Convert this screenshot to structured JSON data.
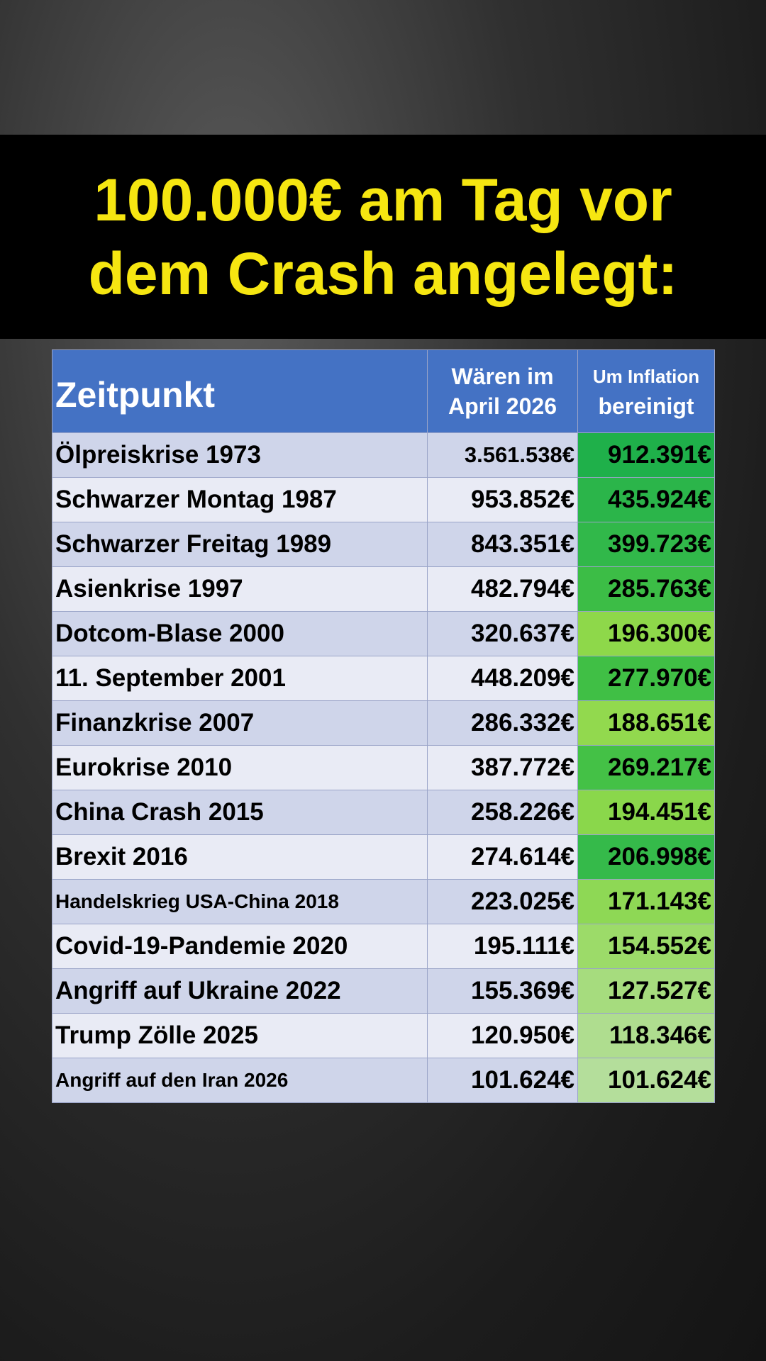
{
  "header": {
    "title": [
      "100.000€ am Tag vor",
      "dem Crash angelegt:"
    ]
  },
  "table": {
    "columns": [
      [
        "Zeitpunkt"
      ],
      [
        "Wären im",
        "April 2026"
      ],
      [
        "Um Inflation",
        "bereinigt"
      ]
    ],
    "rows": [
      [
        "Ölpreiskrise 1973",
        "3.561.538€",
        "912.391€"
      ],
      [
        "Schwarzer Montag 1987",
        "953.852€",
        "435.924€"
      ],
      [
        "Schwarzer Freitag 1989",
        "843.351€",
        "399.723€"
      ],
      [
        "Asienkrise 1997",
        "482.794€",
        "285.763€"
      ],
      [
        "Dotcom-Blase 2000",
        "320.637€",
        "196.300€"
      ],
      [
        "11. September 2001",
        "448.209€",
        "277.970€"
      ],
      [
        "Finanzkrise 2007",
        "286.332€",
        "188.651€"
      ],
      [
        "Eurokrise 2010",
        "387.772€",
        "269.217€"
      ],
      [
        "China Crash 2015",
        "258.226€",
        "194.451€"
      ],
      [
        "Brexit 2016",
        "274.614€",
        "206.998€"
      ],
      [
        "Handelskrieg USA-China 2018",
        "223.025€",
        "171.143€"
      ],
      [
        "Covid-19-Pandemie 2020",
        "195.111€",
        "154.552€"
      ],
      [
        "Angriff auf Ukraine 2022",
        "155.369€",
        "127.527€"
      ],
      [
        "Trump Zölle 2025",
        "120.950€",
        "118.346€"
      ],
      [
        "Angriff auf den Iran 2026",
        "101.624€",
        "101.624€"
      ]
    ]
  }
}
